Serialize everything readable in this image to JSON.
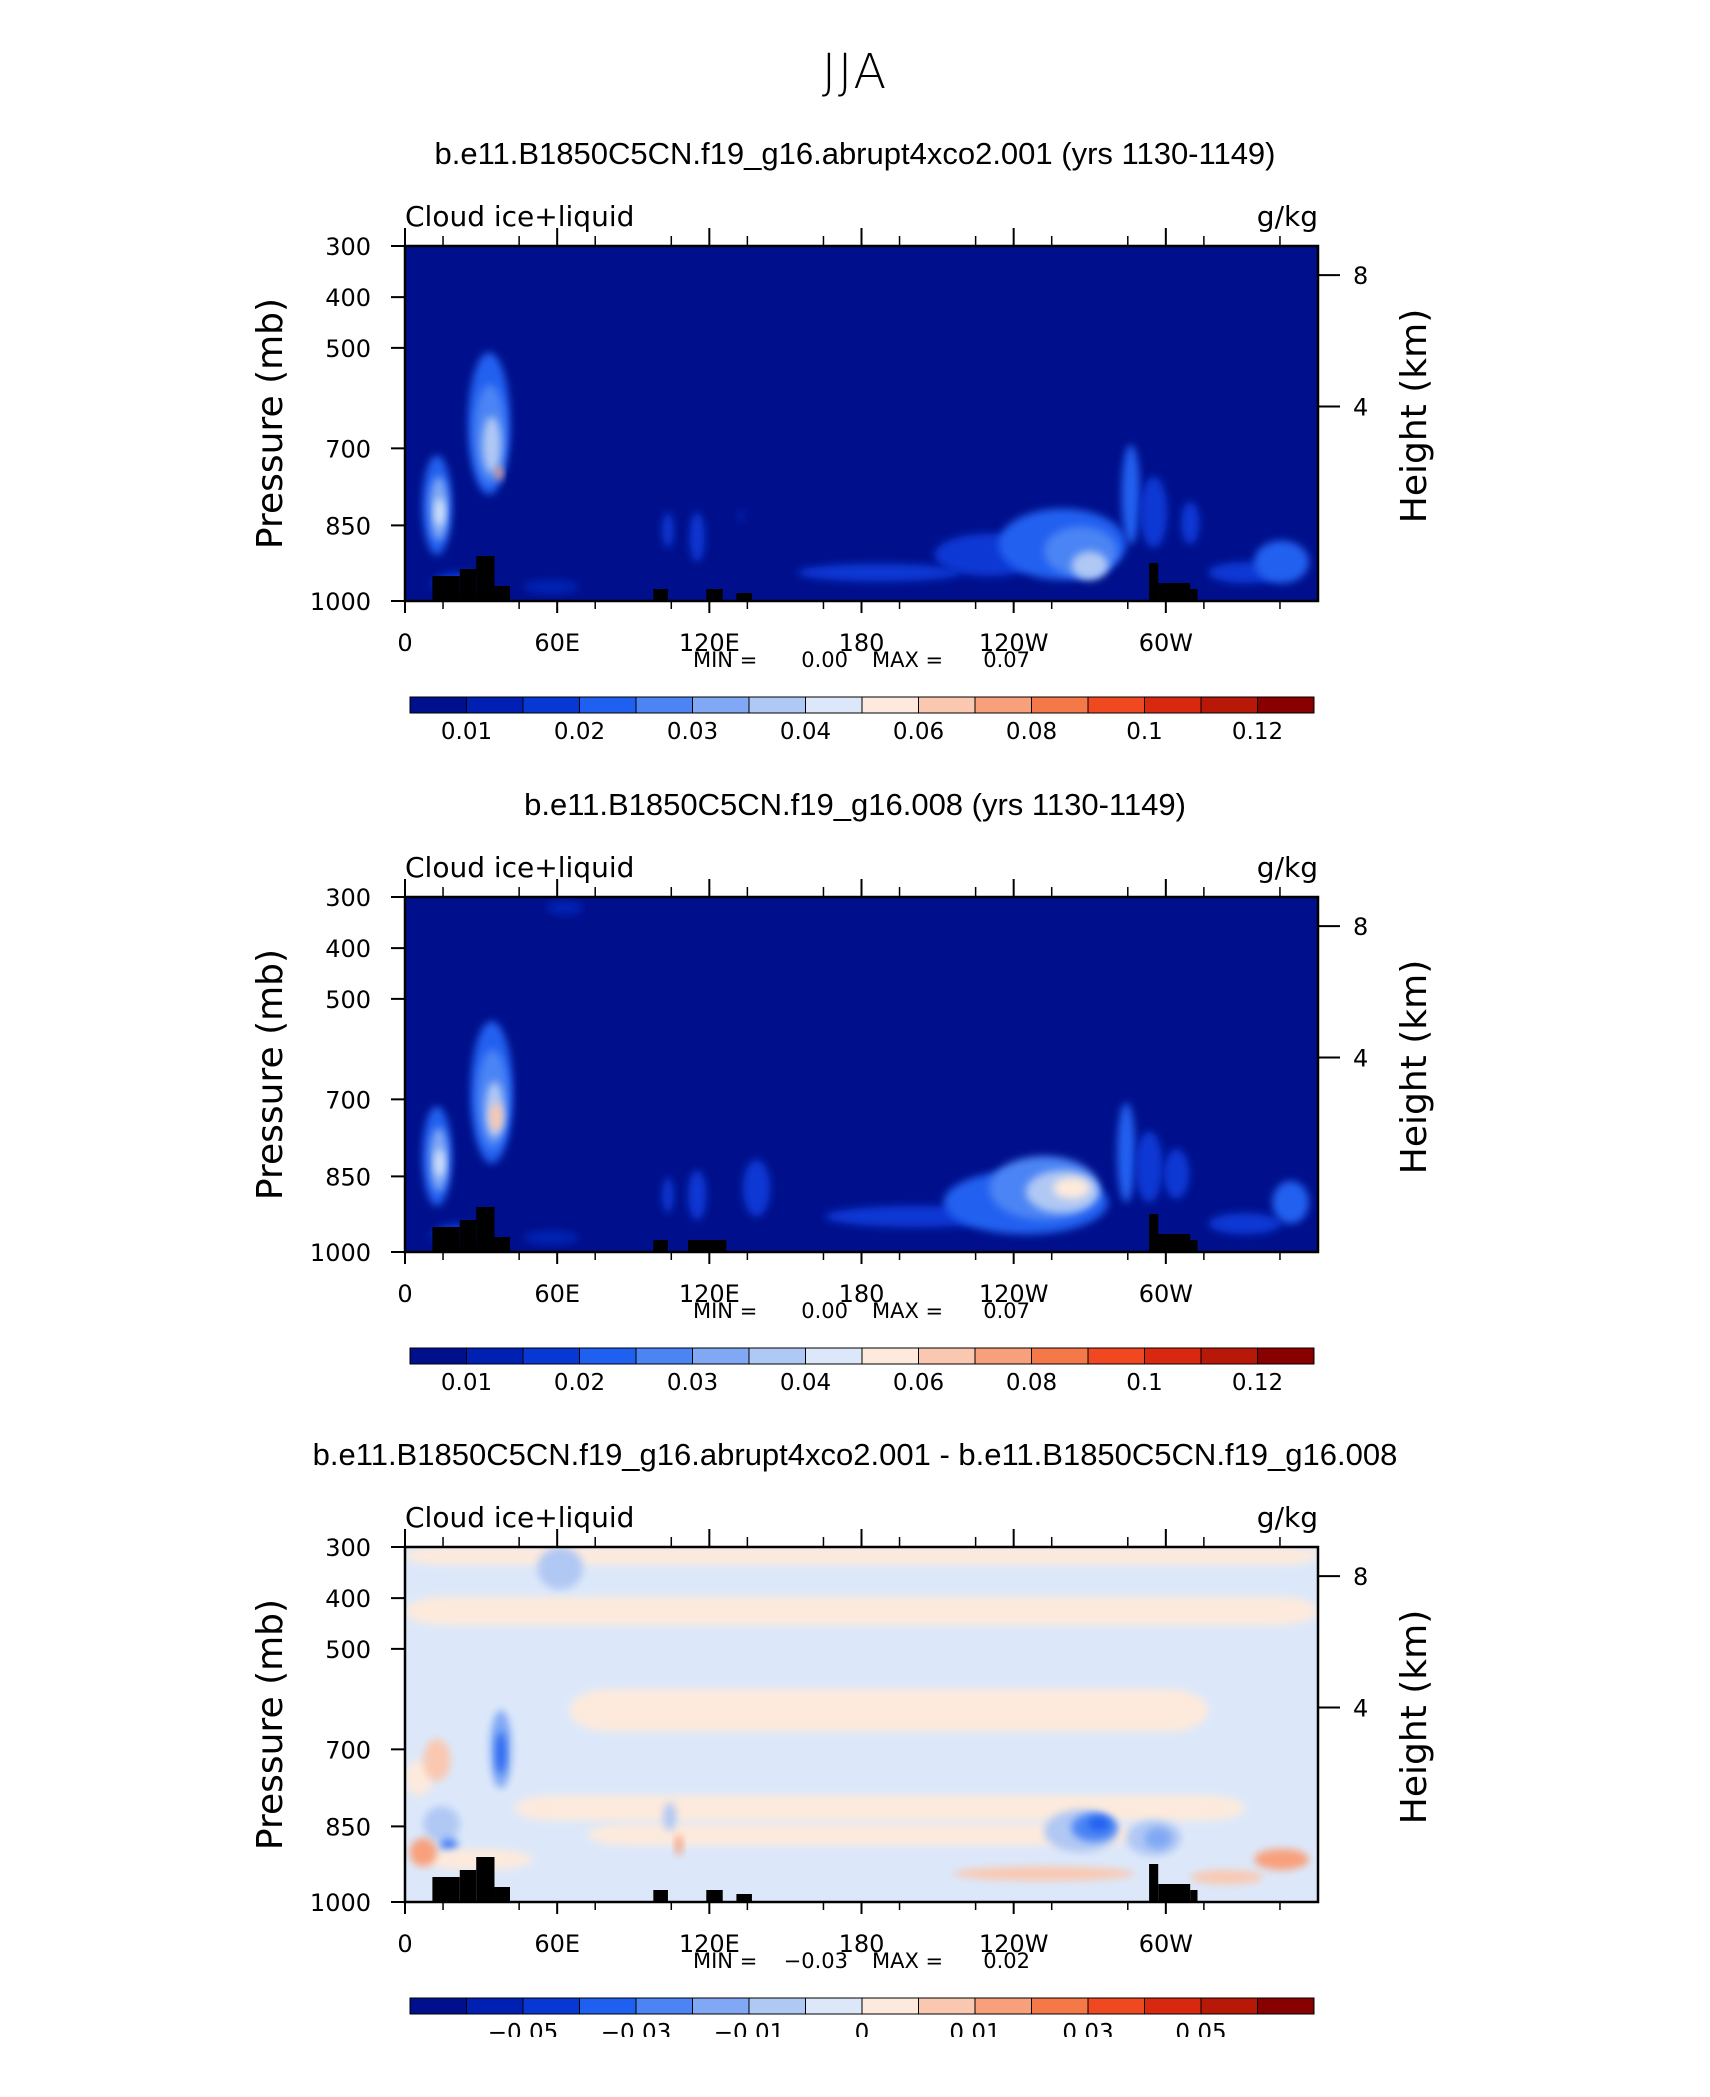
{
  "title": "JJA",
  "chart_data": [
    {
      "type": "heatmap",
      "title": "b.e11.B1850C5CN.f19_g16.abrupt4xco2.001 (yrs 1130-1149)",
      "left_label": "Cloud ice+liquid",
      "units": "g/kg",
      "ylabel": "Pressure (mb)",
      "ylabel_right": "Height (km)",
      "y_ticks": [
        "300",
        "400",
        "500",
        "700",
        "850",
        "1000"
      ],
      "y_right_ticks": [
        "8",
        "4"
      ],
      "x_ticks": [
        "0",
        "60E",
        "120E",
        "180",
        "120W",
        "60W"
      ],
      "min_label": "MIN =",
      "min": "0.00",
      "max_label": "MAX =",
      "max": "0.07",
      "colorbar_labels": [
        "0.01",
        "0.02",
        "0.03",
        "0.04",
        "0.06",
        "0.08",
        "0.1",
        "0.12"
      ],
      "colors": [
        "#00108c",
        "#0020b4",
        "#0838d4",
        "#2060f0",
        "#4c84f4",
        "#80a8f4",
        "#b0c8f4",
        "#dce8fa",
        "#fdeadc",
        "#fac8b0",
        "#f8a07c",
        "#f47848",
        "#f04820",
        "#d82810",
        "#b81808",
        "#880000"
      ]
    },
    {
      "type": "heatmap",
      "title": "b.e11.B1850C5CN.f19_g16.008 (yrs 1130-1149)",
      "left_label": "Cloud ice+liquid",
      "units": "g/kg",
      "ylabel": "Pressure (mb)",
      "ylabel_right": "Height (km)",
      "y_ticks": [
        "300",
        "400",
        "500",
        "700",
        "850",
        "1000"
      ],
      "y_right_ticks": [
        "8",
        "4"
      ],
      "x_ticks": [
        "0",
        "60E",
        "120E",
        "180",
        "120W",
        "60W"
      ],
      "min_label": "MIN =",
      "min": "0.00",
      "max_label": "MAX =",
      "max": "0.07",
      "colorbar_labels": [
        "0.01",
        "0.02",
        "0.03",
        "0.04",
        "0.06",
        "0.08",
        "0.1",
        "0.12"
      ],
      "colors": [
        "#00108c",
        "#0020b4",
        "#0838d4",
        "#2060f0",
        "#4c84f4",
        "#80a8f4",
        "#b0c8f4",
        "#dce8fa",
        "#fdeadc",
        "#fac8b0",
        "#f8a07c",
        "#f47848",
        "#f04820",
        "#d82810",
        "#b81808",
        "#880000"
      ]
    },
    {
      "type": "heatmap",
      "title": "b.e11.B1850C5CN.f19_g16.abrupt4xco2.001 - b.e11.B1850C5CN.f19_g16.008",
      "left_label": "Cloud ice+liquid",
      "units": "g/kg",
      "ylabel": "Pressure (mb)",
      "ylabel_right": "Height (km)",
      "y_ticks": [
        "300",
        "400",
        "500",
        "700",
        "850",
        "1000"
      ],
      "y_right_ticks": [
        "8",
        "4"
      ],
      "x_ticks": [
        "0",
        "60E",
        "120E",
        "180",
        "120W",
        "60W"
      ],
      "min_label": "MIN =",
      "min": "−0.03",
      "max_label": "MAX =",
      "max": "0.02",
      "colorbar_labels": [
        "−0.05",
        "−0.03",
        "−0.01",
        "0",
        "0.01",
        "0.03",
        "0.05"
      ],
      "colors": [
        "#00108c",
        "#0020b4",
        "#0838d4",
        "#2060f0",
        "#4c84f4",
        "#80a8f4",
        "#b0c8f4",
        "#dce8fa",
        "#fdeadc",
        "#fac8b0",
        "#f8a07c",
        "#f47848",
        "#f04820",
        "#d82810",
        "#b81808",
        "#880000"
      ]
    }
  ]
}
